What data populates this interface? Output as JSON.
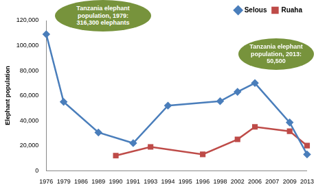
{
  "chart_data": {
    "type": "line",
    "y_label": "Elephant population",
    "categories": [
      "1976",
      "1979",
      "1986",
      "1989",
      "1990",
      "1991",
      "1993",
      "1994",
      "1995",
      "1996",
      "1998",
      "2002",
      "2006",
      "2007",
      "2009",
      "2013"
    ],
    "series": [
      {
        "name": "Selous",
        "color": "#4a7ebb",
        "marker": "diamond",
        "values": [
          109000,
          55000,
          null,
          30500,
          null,
          22000,
          null,
          52000,
          null,
          null,
          55500,
          63000,
          70000,
          null,
          38500,
          13000
        ]
      },
      {
        "name": "Ruaha",
        "color": "#be4b48",
        "marker": "square",
        "values": [
          null,
          null,
          null,
          null,
          12000,
          null,
          19000,
          null,
          null,
          13000,
          null,
          25000,
          35000,
          null,
          31500,
          20000
        ]
      }
    ],
    "ylim": [
      0,
      120000
    ],
    "yticks": [
      0,
      {
        "value": 20000,
        "label": "20,000"
      },
      {
        "value": 40000,
        "label": "40,000"
      },
      {
        "value": 60000,
        "label": "60,000"
      },
      {
        "value": 80000,
        "label": "80,000"
      },
      {
        "value": 100000,
        "label": "100,000"
      },
      {
        "value": 120000,
        "label": "120,000"
      }
    ],
    "grid": false,
    "legend": "upper right",
    "annotations": [
      "Tanzania elephant population, 1979: 316,300 elephants",
      "Tanzania elephant population, 2013: 50,500"
    ]
  }
}
